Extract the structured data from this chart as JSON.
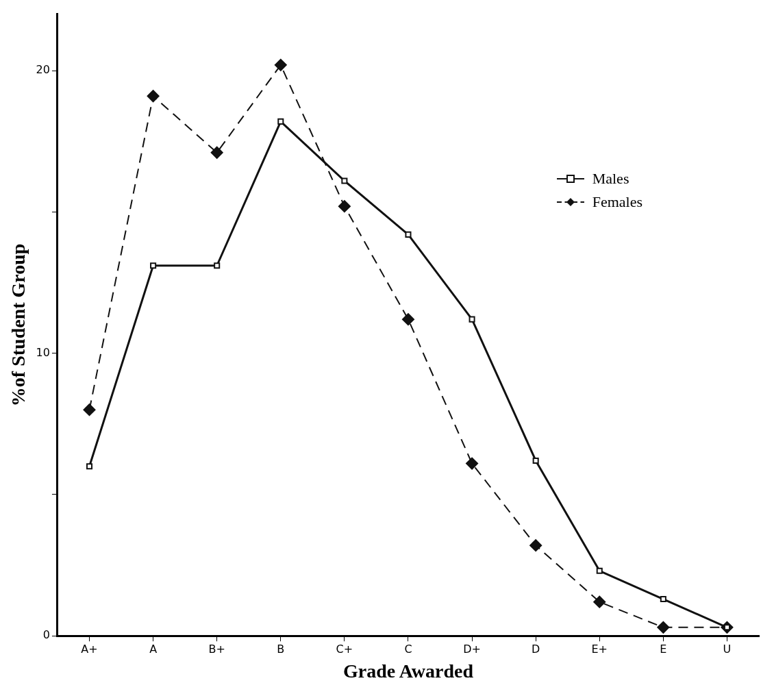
{
  "chart_data": {
    "type": "line",
    "xlabel": "Grade Awarded",
    "ylabel": "%of Student Group",
    "categories": [
      "A+",
      "A",
      "B+",
      "B",
      "C+",
      "C",
      "D+",
      "D",
      "E+",
      "E",
      "U"
    ],
    "series": [
      {
        "name": "Males",
        "color": "#111111",
        "marker": "square",
        "line_style": "solid",
        "values": [
          6.0,
          13.1,
          13.1,
          18.2,
          16.1,
          14.2,
          11.2,
          6.2,
          2.3,
          1.3,
          0.3
        ]
      },
      {
        "name": "Females",
        "color": "#111111",
        "marker": "diamond",
        "line_style": "dashed",
        "values": [
          8.0,
          19.1,
          17.1,
          20.2,
          15.2,
          11.2,
          6.1,
          3.2,
          1.2,
          0.3,
          0.3
        ]
      }
    ],
    "ylim": [
      0,
      22
    ],
    "yticks": [
      0,
      {
        "value": 5,
        "label": null
      },
      10,
      {
        "value": 15,
        "label": null
      },
      20
    ],
    "grid": false,
    "legend": "top right"
  }
}
